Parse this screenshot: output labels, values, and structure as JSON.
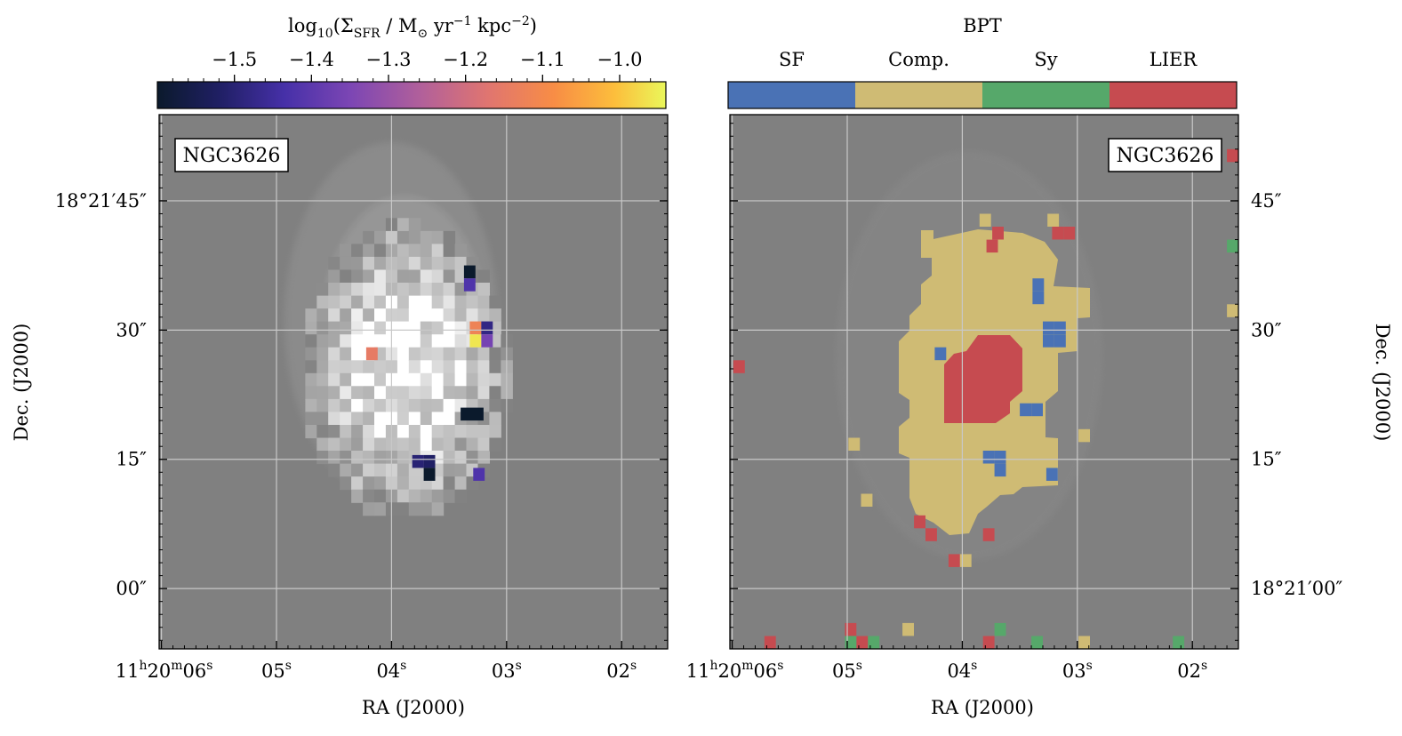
{
  "chart_data": [
    {
      "type": "heatmap",
      "title": "log10(ΣSFR / M☉ yr−1 kpc−2)",
      "colorbar": {
        "label_main": "log",
        "label_sub": "10",
        "label_rest1": "(Σ",
        "label_sfr": "SFR",
        "label_rest2": " / M",
        "label_sun": "⊙",
        "label_rest3": " yr",
        "label_exp1": "−1",
        "label_rest4": " kpc",
        "label_exp2": "−2",
        "label_close": ")",
        "range": [
          -1.6,
          -0.94
        ],
        "ticks": [
          -1.5,
          -1.4,
          -1.3,
          -1.2,
          -1.1,
          -1.0
        ],
        "tick_labels": [
          "−1.5",
          "−1.4",
          "−1.3",
          "−1.2",
          "−1.1",
          "−1.0"
        ],
        "colormap": "plasma"
      },
      "galaxy_label": "NGC3626",
      "xlabel": "RA (J2000)",
      "ylabel": "Dec. (J2000)",
      "ra_range_s": [
        6.02,
        1.6
      ],
      "dec_range_arcsec": [
        -7,
        55
      ],
      "x_ticks": [
        {
          "ra_s": 6,
          "h": "11",
          "hs": "h",
          "m": "20",
          "ms": "m",
          "s": "06",
          "ss": "s"
        },
        {
          "ra_s": 5,
          "s": "05",
          "ss": "s"
        },
        {
          "ra_s": 4,
          "s": "04",
          "ss": "s"
        },
        {
          "ra_s": 3,
          "s": "03",
          "ss": "s"
        },
        {
          "ra_s": 2,
          "s": "02",
          "ss": "s"
        }
      ],
      "y_ticks": [
        {
          "dec": 45,
          "label": "18°21′45″"
        },
        {
          "dec": 30,
          "label": "30″"
        },
        {
          "dec": 15,
          "label": "15″"
        },
        {
          "dec": 0,
          "label": "00″"
        }
      ],
      "colored_pixels": [
        {
          "ra": 3.37,
          "dec": 37.5,
          "value": -1.6
        },
        {
          "ra": 3.37,
          "dec": 36.0,
          "value": -1.42
        },
        {
          "ra": 3.32,
          "dec": 31.0,
          "value": -1.12
        },
        {
          "ra": 3.22,
          "dec": 31.0,
          "value": -1.48
        },
        {
          "ra": 3.32,
          "dec": 29.5,
          "value": -0.96
        },
        {
          "ra": 3.22,
          "dec": 29.5,
          "value": -1.36
        },
        {
          "ra": 4.22,
          "dec": 28.0,
          "value": -1.15
        },
        {
          "ra": 3.4,
          "dec": 21.0,
          "value": -1.6
        },
        {
          "ra": 3.3,
          "dec": 21.0,
          "value": -1.6
        },
        {
          "ra": 3.82,
          "dec": 15.5,
          "value": -1.5
        },
        {
          "ra": 3.72,
          "dec": 15.5,
          "value": -1.52
        },
        {
          "ra": 3.72,
          "dec": 14.0,
          "value": -1.6
        },
        {
          "ra": 3.29,
          "dec": 14.0,
          "value": -1.42
        }
      ]
    },
    {
      "type": "heatmap",
      "title": "BPT",
      "galaxy_label": "NGC3626",
      "xlabel": "RA (J2000)",
      "ylabel": "Dec. (J2000)",
      "categories": [
        "SF",
        "Comp.",
        "Sy",
        "LIER"
      ],
      "category_colors": [
        "#4a72b5",
        "#cfbb74",
        "#56a86a",
        "#c64b50"
      ],
      "ra_range_s": [
        6.02,
        1.6
      ],
      "dec_range_arcsec": [
        -7,
        55
      ],
      "x_ticks": [
        {
          "ra_s": 6,
          "h": "11",
          "hs": "h",
          "m": "20",
          "ms": "m",
          "s": "06",
          "ss": "s"
        },
        {
          "ra_s": 5,
          "s": "05",
          "ss": "s"
        },
        {
          "ra_s": 4,
          "s": "04",
          "ss": "s"
        },
        {
          "ra_s": 3,
          "s": "03",
          "ss": "s"
        },
        {
          "ra_s": 2,
          "s": "02",
          "ss": "s"
        }
      ],
      "y_ticks": [
        {
          "dec": 45,
          "label": "45″"
        },
        {
          "dec": 30,
          "label": "30″"
        },
        {
          "dec": 15,
          "label": "15″"
        },
        {
          "dec": 0,
          "label": "18°21′00″"
        }
      ],
      "pixels": [
        {
          "ra": 1.7,
          "dec": 51.0,
          "class": "LIER"
        },
        {
          "ra": 3.85,
          "dec": 43.5,
          "class": "Comp."
        },
        {
          "ra": 3.74,
          "dec": 42.0,
          "class": "LIER"
        },
        {
          "ra": 3.79,
          "dec": 40.5,
          "class": "LIER"
        },
        {
          "ra": 3.26,
          "dec": 43.5,
          "class": "Comp."
        },
        {
          "ra": 3.22,
          "dec": 42.0,
          "class": "LIER"
        },
        {
          "ra": 3.12,
          "dec": 42.0,
          "class": "LIER"
        },
        {
          "ra": 1.7,
          "dec": 40.5,
          "class": "Sy"
        },
        {
          "ra": 3.39,
          "dec": 34.5,
          "class": "SF"
        },
        {
          "ra": 3.39,
          "dec": 36.0,
          "class": "SF"
        },
        {
          "ra": 1.7,
          "dec": 33.0,
          "class": "Comp."
        },
        {
          "ra": 3.3,
          "dec": 31.0,
          "class": "SF"
        },
        {
          "ra": 3.2,
          "dec": 31.0,
          "class": "SF"
        },
        {
          "ra": 3.3,
          "dec": 29.5,
          "class": "SF"
        },
        {
          "ra": 3.2,
          "dec": 29.5,
          "class": "SF"
        },
        {
          "ra": 4.24,
          "dec": 28.0,
          "class": "SF"
        },
        {
          "ra": 5.99,
          "dec": 26.5,
          "class": "LIER"
        },
        {
          "ra": 3.5,
          "dec": 21.5,
          "class": "SF"
        },
        {
          "ra": 3.4,
          "dec": 21.5,
          "class": "SF"
        },
        {
          "ra": 2.99,
          "dec": 18.5,
          "class": "Comp."
        },
        {
          "ra": 4.99,
          "dec": 17.5,
          "class": "Comp."
        },
        {
          "ra": 3.82,
          "dec": 16.0,
          "class": "SF"
        },
        {
          "ra": 3.72,
          "dec": 16.0,
          "class": "SF"
        },
        {
          "ra": 3.72,
          "dec": 14.5,
          "class": "SF"
        },
        {
          "ra": 3.27,
          "dec": 14.0,
          "class": "SF"
        },
        {
          "ra": 4.88,
          "dec": 11.0,
          "class": "Comp."
        },
        {
          "ra": 4.42,
          "dec": 8.5,
          "class": "LIER"
        },
        {
          "ra": 4.32,
          "dec": 7.0,
          "class": "LIER"
        },
        {
          "ra": 3.82,
          "dec": 7.0,
          "class": "LIER"
        },
        {
          "ra": 4.12,
          "dec": 4.0,
          "class": "LIER"
        },
        {
          "ra": 4.02,
          "dec": 4.0,
          "class": "Comp."
        },
        {
          "ra": 1.6,
          "dec": 4.0,
          "class": "LIER"
        },
        {
          "ra": 5.72,
          "dec": -5.5,
          "class": "LIER"
        },
        {
          "ra": 5.72,
          "dec": -7.0,
          "class": "Sy"
        },
        {
          "ra": 5.02,
          "dec": -4.0,
          "class": "LIER"
        },
        {
          "ra": 5.02,
          "dec": -5.5,
          "class": "Sy"
        },
        {
          "ra": 4.92,
          "dec": -5.5,
          "class": "LIER"
        },
        {
          "ra": 4.92,
          "dec": -7.0,
          "class": "Comp."
        },
        {
          "ra": 4.82,
          "dec": -5.5,
          "class": "Sy"
        },
        {
          "ra": 4.52,
          "dec": -4.0,
          "class": "Comp."
        },
        {
          "ra": 3.72,
          "dec": -4.0,
          "class": "Sy"
        },
        {
          "ra": 3.82,
          "dec": -5.5,
          "class": "LIER"
        },
        {
          "ra": 3.4,
          "dec": -5.5,
          "class": "Sy"
        },
        {
          "ra": 3.3,
          "dec": -7.0,
          "class": "Sy"
        },
        {
          "ra": 2.99,
          "dec": -5.5,
          "class": "Comp."
        },
        {
          "ra": 2.72,
          "dec": -7.0,
          "class": "Comp."
        },
        {
          "ra": 2.37,
          "dec": -7.0,
          "class": "Sy"
        },
        {
          "ra": 2.17,
          "dec": -5.5,
          "class": "Sy"
        },
        {
          "ra": 2.17,
          "dec": -7.0,
          "class": "Sy"
        }
      ]
    }
  ]
}
